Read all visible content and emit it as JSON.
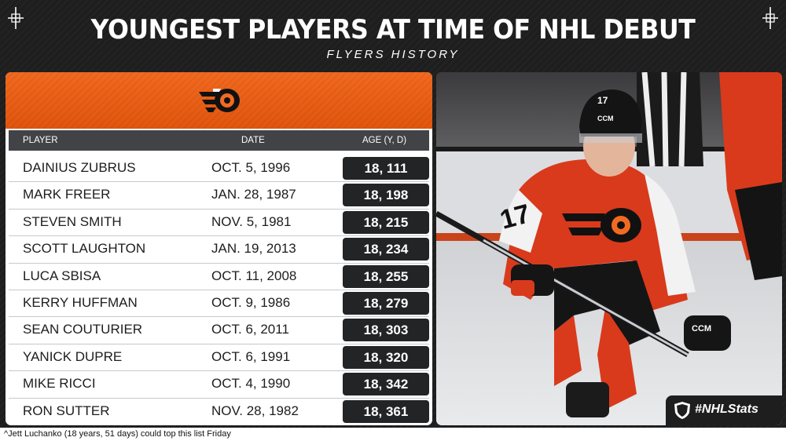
{
  "title": "YOUNGEST PLAYERS AT TIME OF NHL DEBUT",
  "subtitle": "FLYERS HISTORY",
  "table": {
    "headers": {
      "player": "PLAYER",
      "date": "DATE",
      "age": "AGE (Y, D)"
    },
    "rows": [
      {
        "player": "DAINIUS ZUBRUS",
        "date": "OCT. 5, 1996",
        "age": "18, 111"
      },
      {
        "player": "MARK FREER",
        "date": "JAN. 28, 1987",
        "age": "18, 198"
      },
      {
        "player": "STEVEN SMITH",
        "date": "NOV. 5, 1981",
        "age": "18, 215"
      },
      {
        "player": "SCOTT LAUGHTON",
        "date": "JAN. 19, 2013",
        "age": "18, 234"
      },
      {
        "player": "LUCA SBISA",
        "date": "OCT. 11, 2008",
        "age": "18, 255"
      },
      {
        "player": "KERRY HUFFMAN",
        "date": "OCT. 9, 1986",
        "age": "18, 279"
      },
      {
        "player": "SEAN COUTURIER",
        "date": "OCT. 6, 2011",
        "age": "18, 303"
      },
      {
        "player": "YANICK DUPRE",
        "date": "OCT. 6, 1991",
        "age": "18, 320"
      },
      {
        "player": "MIKE RICCI",
        "date": "OCT. 4, 1990",
        "age": "18, 342"
      },
      {
        "player": "RON SUTTER",
        "date": "NOV. 28, 1982",
        "age": "18, 361"
      }
    ]
  },
  "photo": {
    "jersey_number": "17",
    "helmet_brand": "CCM",
    "glove_brand": "CCM"
  },
  "badge": {
    "tag": "#NHLStats"
  },
  "footnote": "^Jett Luchanko (18 years, 51 days) could top this list Friday",
  "colors": {
    "accent": "#f26a21",
    "background": "#1e1e1f",
    "header_row": "#414347",
    "age_cell": "#232426"
  },
  "icons": [
    "corner-crosshair-icon",
    "flyers-logo-icon",
    "nhl-shield-icon"
  ]
}
